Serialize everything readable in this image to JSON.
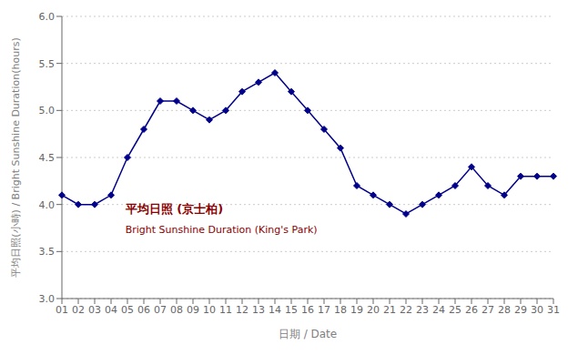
{
  "chart_data": {
    "type": "line",
    "x_label": "日期 / Date",
    "y_label": "平均日照(小時) / Bright Sunshine Duration(hours)",
    "categories": [
      "01",
      "02",
      "03",
      "04",
      "05",
      "06",
      "07",
      "08",
      "09",
      "10",
      "11",
      "12",
      "13",
      "14",
      "15",
      "16",
      "17",
      "18",
      "19",
      "20",
      "21",
      "22",
      "23",
      "24",
      "25",
      "26",
      "27",
      "28",
      "29",
      "30",
      "31"
    ],
    "values": [
      4.1,
      4.0,
      4.0,
      4.1,
      4.5,
      4.8,
      5.1,
      5.1,
      5.0,
      4.9,
      5.0,
      5.2,
      5.3,
      5.4,
      5.2,
      5.0,
      4.8,
      4.6,
      4.2,
      4.1,
      4.0,
      3.9,
      4.0,
      4.1,
      4.2,
      4.4,
      4.2,
      4.1,
      4.3,
      4.3,
      4.3
    ],
    "color": "#00008B",
    "marker": "diamond",
    "ylim": [
      3.0,
      6.0
    ],
    "yticks": [
      {
        "value": 3,
        "label": "3.0"
      },
      3.5,
      {
        "value": 4,
        "label": "4.0"
      },
      4.5,
      {
        "value": 5,
        "label": "5.0"
      },
      5.5,
      {
        "value": 6,
        "label": "6.0"
      }
    ],
    "grid": true,
    "annotations": [
      {
        "text": "平均日照 (京士柏)",
        "color": "#8B0000",
        "bold": true
      },
      {
        "text": "Bright Sunshine Duration (King's Park)",
        "color": "#8B0000"
      }
    ]
  }
}
